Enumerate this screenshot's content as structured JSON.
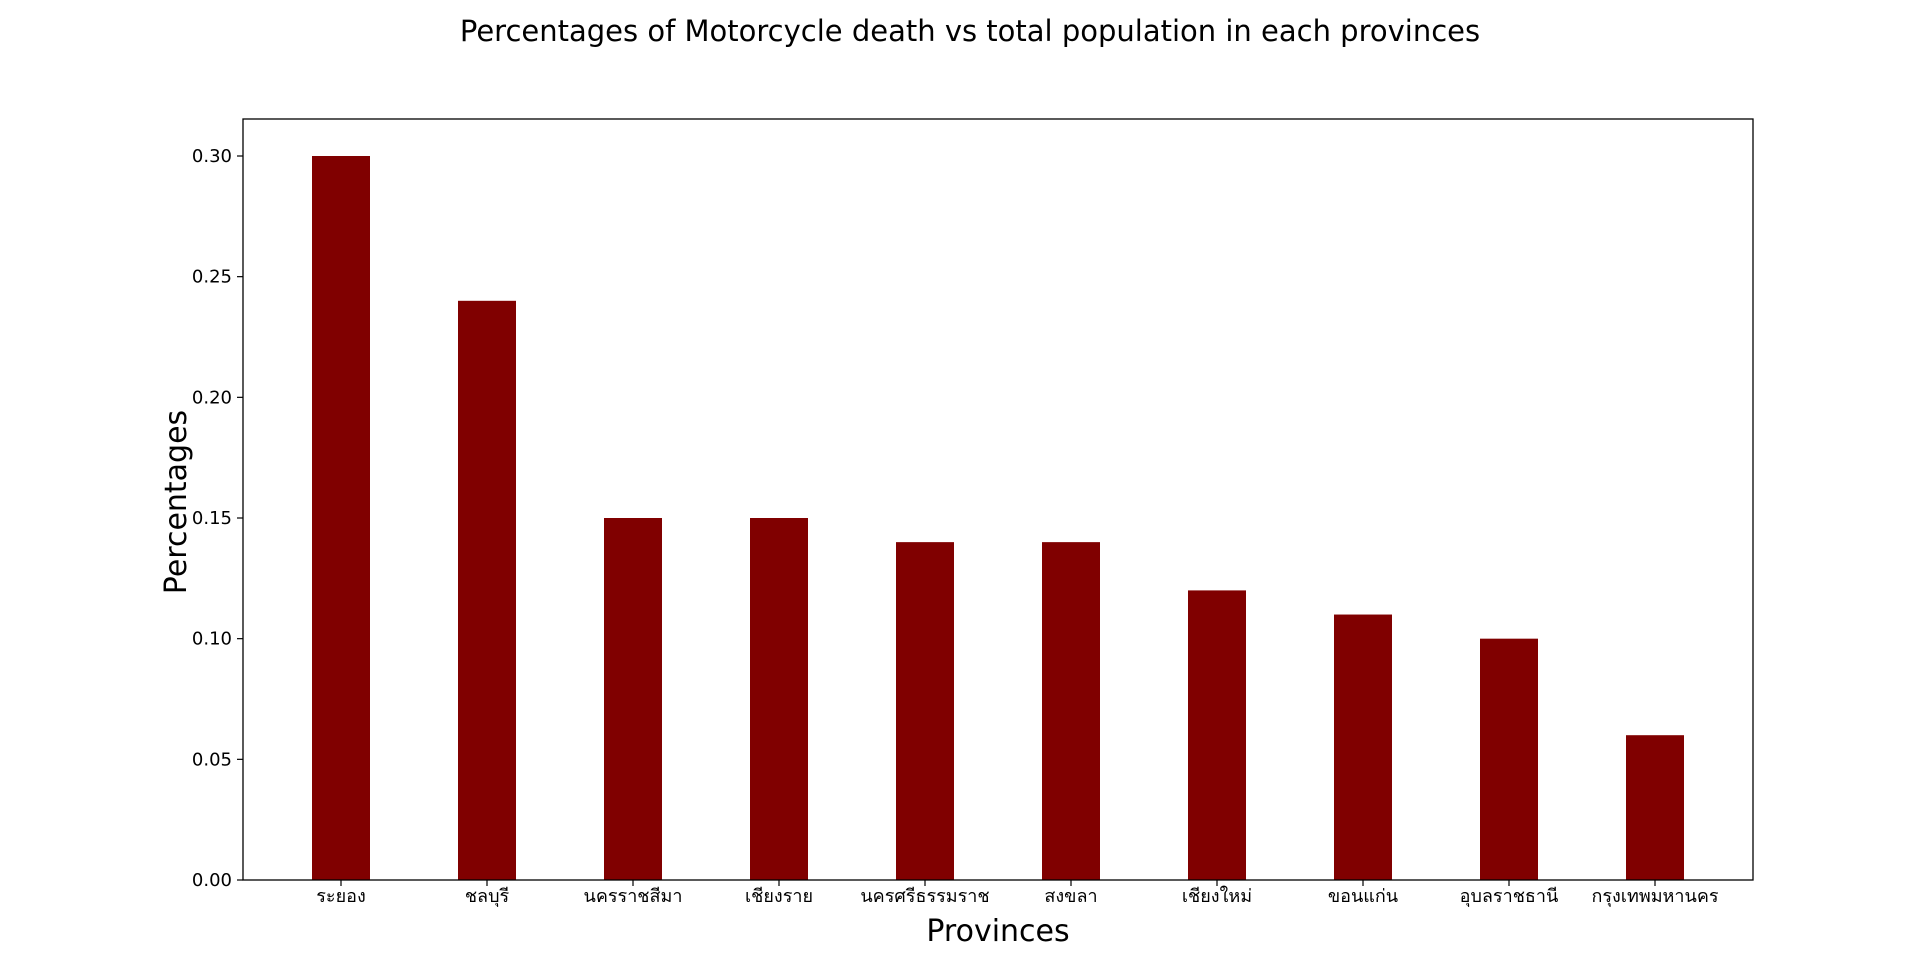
{
  "chart_data": {
    "type": "bar",
    "title": "Percentages of Motorcycle death vs total population in each provinces",
    "xlabel": "Provinces",
    "ylabel": "Percentages",
    "categories": [
      "ระยอง",
      "ชลบุรี",
      "นครราชสีมา",
      "เชียงราย",
      "นครศรีธรรมราช",
      "สงขลา",
      "เชียงใหม่",
      "ขอนแก่น",
      "อุบลราชธานี",
      "กรุงเทพมหานคร"
    ],
    "values": [
      0.3,
      0.24,
      0.15,
      0.15,
      0.14,
      0.14,
      0.12,
      0.11,
      0.1,
      0.06
    ],
    "ylim": [
      0,
      0.315
    ],
    "yticks": [
      "0.00",
      "0.05",
      "0.10",
      "0.15",
      "0.20",
      "0.25",
      "0.30"
    ],
    "bar_color": "#800000",
    "grid": false,
    "legend": "none"
  }
}
